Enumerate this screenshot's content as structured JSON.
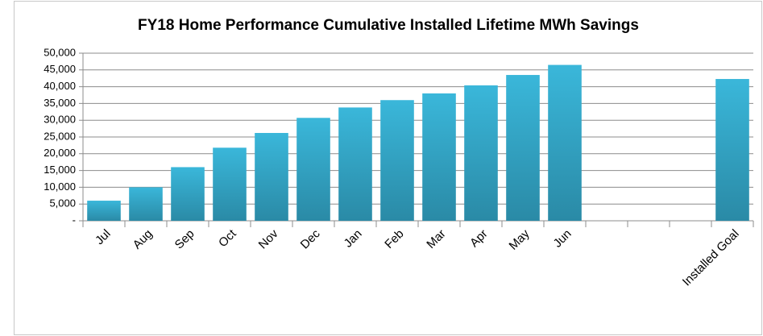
{
  "chart_data": {
    "type": "bar",
    "title": "FY18 Home Performance Cumulative Installed Lifetime MWh Savings",
    "categories": [
      "Jul",
      "Aug",
      "Sep",
      "Oct",
      "Nov",
      "Dec",
      "Jan",
      "Feb",
      "Mar",
      "Apr",
      "May",
      "Jun",
      null,
      null,
      null,
      "Installed Goal"
    ],
    "values": [
      6000,
      10000,
      16000,
      21800,
      26200,
      30700,
      33800,
      36000,
      38000,
      40400,
      43500,
      46500,
      null,
      null,
      null,
      42300
    ],
    "color": "#3ab7da",
    "ylim": [
      0,
      50000
    ],
    "yticks": [
      {
        "value": 0,
        "label": "-"
      },
      {
        "value": 5000,
        "label": "5,000"
      },
      {
        "value": 10000,
        "label": "10,000"
      },
      {
        "value": 15000,
        "label": "15,000"
      },
      {
        "value": 20000,
        "label": "20,000"
      },
      {
        "value": 25000,
        "label": "25,000"
      },
      {
        "value": 30000,
        "label": "30,000"
      },
      {
        "value": 35000,
        "label": "35,000"
      },
      {
        "value": 40000,
        "label": "40,000"
      },
      {
        "value": 45000,
        "label": "45,000"
      },
      {
        "value": 50000,
        "label": "50,000"
      }
    ],
    "grid": true
  }
}
